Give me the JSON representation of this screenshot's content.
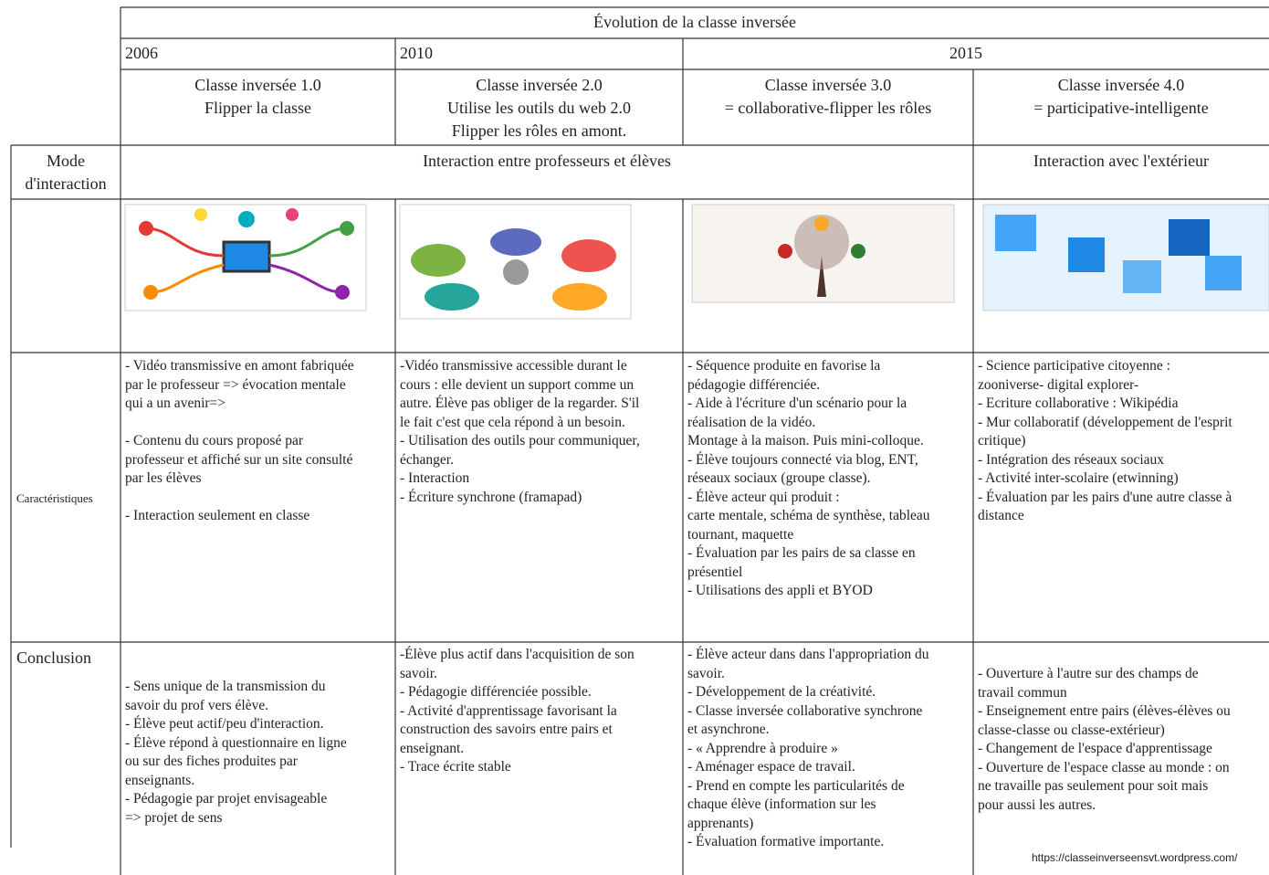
{
  "title": "Évolution de la classe inversée",
  "years": [
    "2006",
    "2010",
    "2015"
  ],
  "versions": [
    [
      "Classe inversée 1.0",
      "Flipper la classe"
    ],
    [
      "Classe inversée 2.0",
      "Utilise les outils du web 2.0",
      "Flipper les rôles en amont."
    ],
    [
      "Classe inversée 3.0",
      "= collaborative-flipper les rôles"
    ],
    [
      "Classe inversée 4.0",
      "= participative-intelligente"
    ]
  ],
  "mode": {
    "label": [
      "Mode",
      "d'interaction"
    ],
    "cells": [
      "Interaction entre professeurs et élèves",
      "Interaction avec l'extérieur"
    ]
  },
  "characteristics": {
    "label": "Caractéristiques",
    "cells": [
      [
        [
          "- Vidéo transmissive en amont fabriquée",
          "par le professeur => évocation mentale",
          "qui a un avenir=>"
        ],
        [
          "- Contenu du cours proposé par",
          "professeur et affiché sur un site consulté",
          "par les élèves"
        ],
        [
          "- Interaction seulement en classe"
        ]
      ],
      [
        [
          "-Vidéo transmissive accessible durant le",
          "cours : elle devient un support comme un",
          "autre. Élève pas obliger de la regarder. S'il",
          "le fait c'est que cela répond à un besoin.",
          "- Utilisation des outils pour communiquer,",
          "échanger.",
          "- Interaction",
          "- Écriture synchrone (framapad)"
        ]
      ],
      [
        [
          "- Séquence produite en favorise la",
          "pédagogie différenciée.",
          "- Aide à l'écriture d'un scénario pour la",
          "réalisation de la vidéo.",
          "Montage à la maison. Puis mini-colloque.",
          "- Élève toujours connecté via blog, ENT,",
          "réseaux sociaux (groupe classe).",
          "- Élève acteur qui produit :",
          "carte mentale, schéma de synthèse, tableau",
          "tournant, maquette",
          "- Évaluation par les pairs de sa classe en",
          "présentiel",
          "- Utilisations des appli et BYOD"
        ]
      ],
      [
        [
          "- Science participative citoyenne :",
          "zooniverse- digital explorer-",
          "- Ecriture collaborative : Wikipédia",
          "- Mur collaboratif (développement de l'esprit",
          "critique)",
          "- Intégration des réseaux sociaux",
          "- Activité inter-scolaire (etwinning)",
          "- Évaluation par les pairs d'une autre classe à",
          "distance"
        ]
      ]
    ]
  },
  "conclusion": {
    "label": "Conclusion",
    "cells": [
      [
        [
          "- Sens unique de la transmission du",
          "savoir du prof vers élève.",
          "- Élève peut actif/peu d'interaction.",
          "- Élève répond à questionnaire en ligne",
          "ou sur des fiches produites par",
          "enseignants.",
          "- Pédagogie par projet envisageable",
          "=> projet de sens"
        ]
      ],
      [
        [
          "-Élève plus actif dans l'acquisition de son",
          "savoir.",
          "- Pédagogie différenciée possible.",
          "- Activité d'apprentissage favorisant la",
          "construction des savoirs entre pairs et",
          "enseignant.",
          "- Trace écrite stable"
        ]
      ],
      [
        [
          "- Élève acteur dans dans l'appropriation du",
          "savoir.",
          "- Développement de la créativité.",
          "- Classe inversée collaborative synchrone",
          "et asynchrone.",
          "- « Apprendre à produire »",
          "- Aménager espace de travail.",
          "- Prend en compte les particularités de",
          "chaque élève (information sur les",
          "apprenants)",
          "- Évaluation formative importante."
        ]
      ],
      [
        [
          "- Ouverture à l'autre sur des champs de",
          "travail commun",
          "- Enseignement entre pairs (élèves-élèves ou",
          "classe-classe ou classe-extérieur)",
          "- Changement de l'espace d'apprentissage",
          "- Ouverture de l'espace classe au monde : on",
          "ne travaille pas seulement pour soit mais",
          "pour aussi les autres."
        ]
      ]
    ]
  },
  "source": "https://classeinverseensvt.wordpress.com/"
}
